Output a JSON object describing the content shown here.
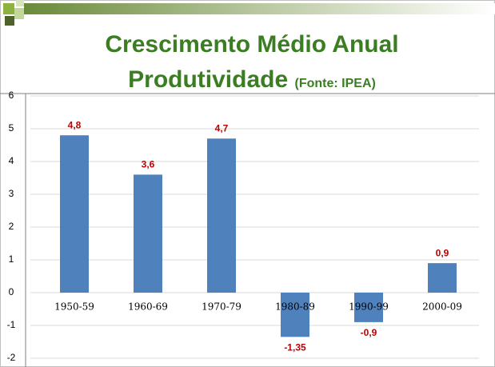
{
  "chart_data": {
    "type": "bar",
    "title": "Crescimento Médio Anual Produtividade",
    "source": "(Fonte: IPEA)",
    "categories": [
      "1950-59",
      "1960-69",
      "1970-79",
      "1980-89",
      "1990-99",
      "2000-09"
    ],
    "values": [
      4.8,
      3.6,
      4.7,
      -1.35,
      -0.9,
      0.9
    ],
    "value_labels": [
      "4,8",
      "3,6",
      "4,7",
      "-1,35",
      "-0,9",
      "0,9"
    ],
    "color": "#4f81bd",
    "ylim": [
      -2,
      6
    ],
    "yticks": [
      -2,
      -1,
      0,
      1,
      2,
      3,
      4,
      5,
      6
    ],
    "grid": true
  }
}
